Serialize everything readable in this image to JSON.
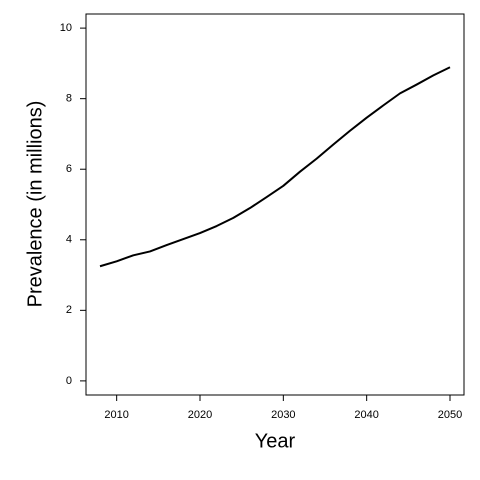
{
  "chart_data": {
    "type": "line",
    "x_label": "Year",
    "y_label": "Prevalence (in millions)",
    "x": [
      2008,
      2010,
      2012,
      2014,
      2016,
      2018,
      2020,
      2022,
      2024,
      2026,
      2028,
      2030,
      2032,
      2034,
      2036,
      2038,
      2040,
      2042,
      2044,
      2046,
      2048,
      2050
    ],
    "values": [
      3.25,
      3.39,
      3.56,
      3.67,
      3.85,
      4.02,
      4.19,
      4.39,
      4.62,
      4.9,
      5.21,
      5.53,
      5.93,
      6.3,
      6.7,
      7.09,
      7.46,
      7.81,
      8.15,
      8.4,
      8.66,
      8.89
    ],
    "color": "#000000",
    "xlim": [
      2006.32,
      2051.68
    ],
    "xticks": [
      2010,
      2020,
      2030,
      2040,
      2050
    ],
    "ylim": [
      -0.4,
      10.4
    ],
    "yticks": [
      0,
      2,
      4,
      6,
      8,
      10
    ],
    "grid": false
  }
}
